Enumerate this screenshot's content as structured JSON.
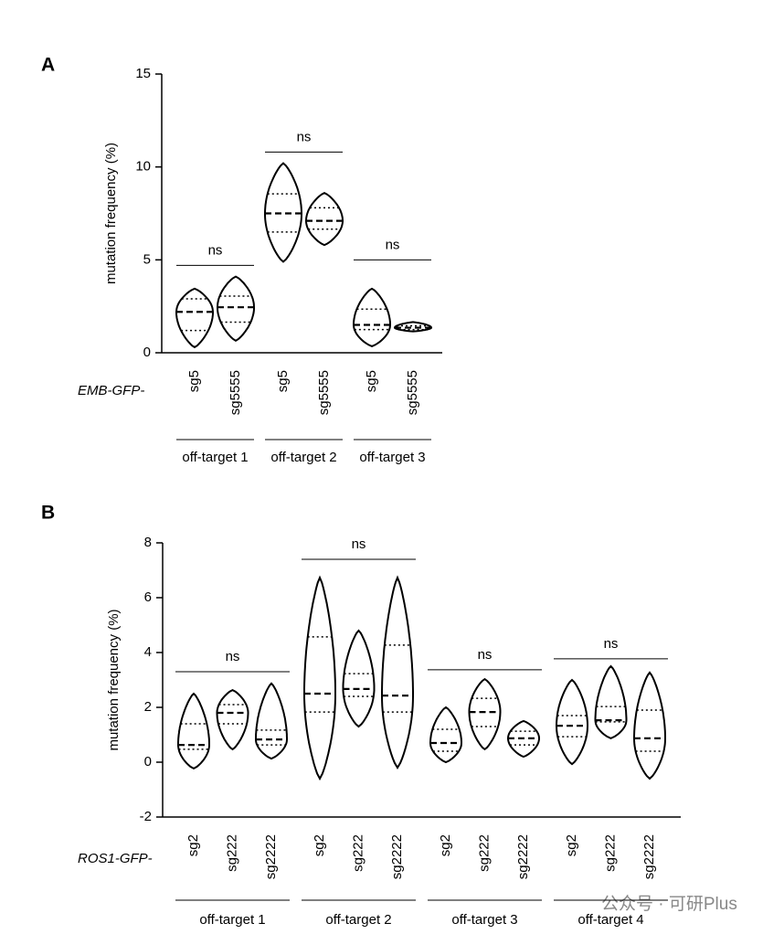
{
  "chart_data": [
    {
      "type": "violin",
      "panel_label": "A",
      "y_label": "mutation frequency (%)",
      "prefix_label": "EMB-GFP-",
      "color": "#000000",
      "ylim": [
        0,
        15
      ],
      "yticks": [
        0,
        5,
        10,
        15
      ],
      "groups": [
        {
          "name": "off-target 1",
          "categories": [
            "sg5",
            "sg5555"
          ],
          "min": [
            0.3,
            0.65
          ],
          "q1": [
            1.2,
            1.65
          ],
          "median": [
            2.2,
            2.45
          ],
          "q3": [
            2.9,
            3.05
          ],
          "max": [
            3.45,
            4.1
          ],
          "annotation": {
            "text": "ns",
            "y": 4.7
          }
        },
        {
          "name": "off-target 2",
          "categories": [
            "sg5",
            "sg5555"
          ],
          "min": [
            4.9,
            5.8
          ],
          "q1": [
            6.5,
            6.65
          ],
          "median": [
            7.5,
            7.1
          ],
          "q3": [
            8.55,
            7.8
          ],
          "max": [
            10.2,
            8.6
          ],
          "annotation": {
            "text": "ns",
            "y": 10.8
          }
        },
        {
          "name": "off-target 3",
          "categories": [
            "sg5",
            "sg5555"
          ],
          "min": [
            0.35,
            1.15
          ],
          "q1": [
            1.25,
            1.25
          ],
          "median": [
            1.5,
            1.35
          ],
          "q3": [
            2.35,
            1.45
          ],
          "max": [
            3.45,
            1.65
          ],
          "annotation": {
            "text": "ns",
            "y": 5.0
          }
        }
      ]
    },
    {
      "type": "violin",
      "panel_label": "B",
      "y_label": "mutation frequency (%)",
      "prefix_label": "ROS1-GFP-",
      "color": "#000000",
      "ylim": [
        -2,
        8
      ],
      "yticks": [
        -2,
        0,
        2,
        4,
        6,
        8
      ],
      "groups": [
        {
          "name": "off-target 1",
          "categories": [
            "sg2",
            "sg222",
            "sg2222"
          ],
          "min": [
            -0.23,
            0.47,
            0.13
          ],
          "q1": [
            0.47,
            1.4,
            0.63
          ],
          "median": [
            0.63,
            1.8,
            0.83
          ],
          "q3": [
            1.4,
            2.1,
            1.17
          ],
          "max": [
            2.5,
            2.63,
            2.87
          ],
          "annotation": {
            "text": "ns",
            "y": 3.3
          }
        },
        {
          "name": "off-target 2",
          "categories": [
            "sg2",
            "sg222",
            "sg2222"
          ],
          "min": [
            -0.6,
            1.3,
            -0.2
          ],
          "q1": [
            1.83,
            2.4,
            1.83
          ],
          "median": [
            2.5,
            2.67,
            2.43
          ],
          "q3": [
            4.57,
            3.23,
            4.27
          ],
          "max": [
            6.73,
            4.8,
            6.73
          ],
          "annotation": {
            "text": "ns",
            "y": 7.4
          }
        },
        {
          "name": "off-target 3",
          "categories": [
            "sg2",
            "sg222",
            "sg2222"
          ],
          "min": [
            0,
            0.47,
            0.2
          ],
          "q1": [
            0.4,
            1.3,
            0.63
          ],
          "median": [
            0.7,
            1.83,
            0.87
          ],
          "q3": [
            1.2,
            2.33,
            1.13
          ],
          "max": [
            2.0,
            3.03,
            1.5
          ],
          "annotation": {
            "text": "ns",
            "y": 3.37
          }
        },
        {
          "name": "off-target 4",
          "categories": [
            "sg2",
            "sg222",
            "sg2222"
          ],
          "min": [
            -0.07,
            0.87,
            -0.6
          ],
          "q1": [
            0.93,
            1.47,
            0.4
          ],
          "median": [
            1.33,
            1.53,
            0.87
          ],
          "q3": [
            1.7,
            2.03,
            1.9
          ],
          "max": [
            3.0,
            3.5,
            3.27
          ],
          "annotation": {
            "text": "ns",
            "y": 3.77
          }
        }
      ]
    }
  ],
  "watermark": "公众号 · 可研Plus"
}
